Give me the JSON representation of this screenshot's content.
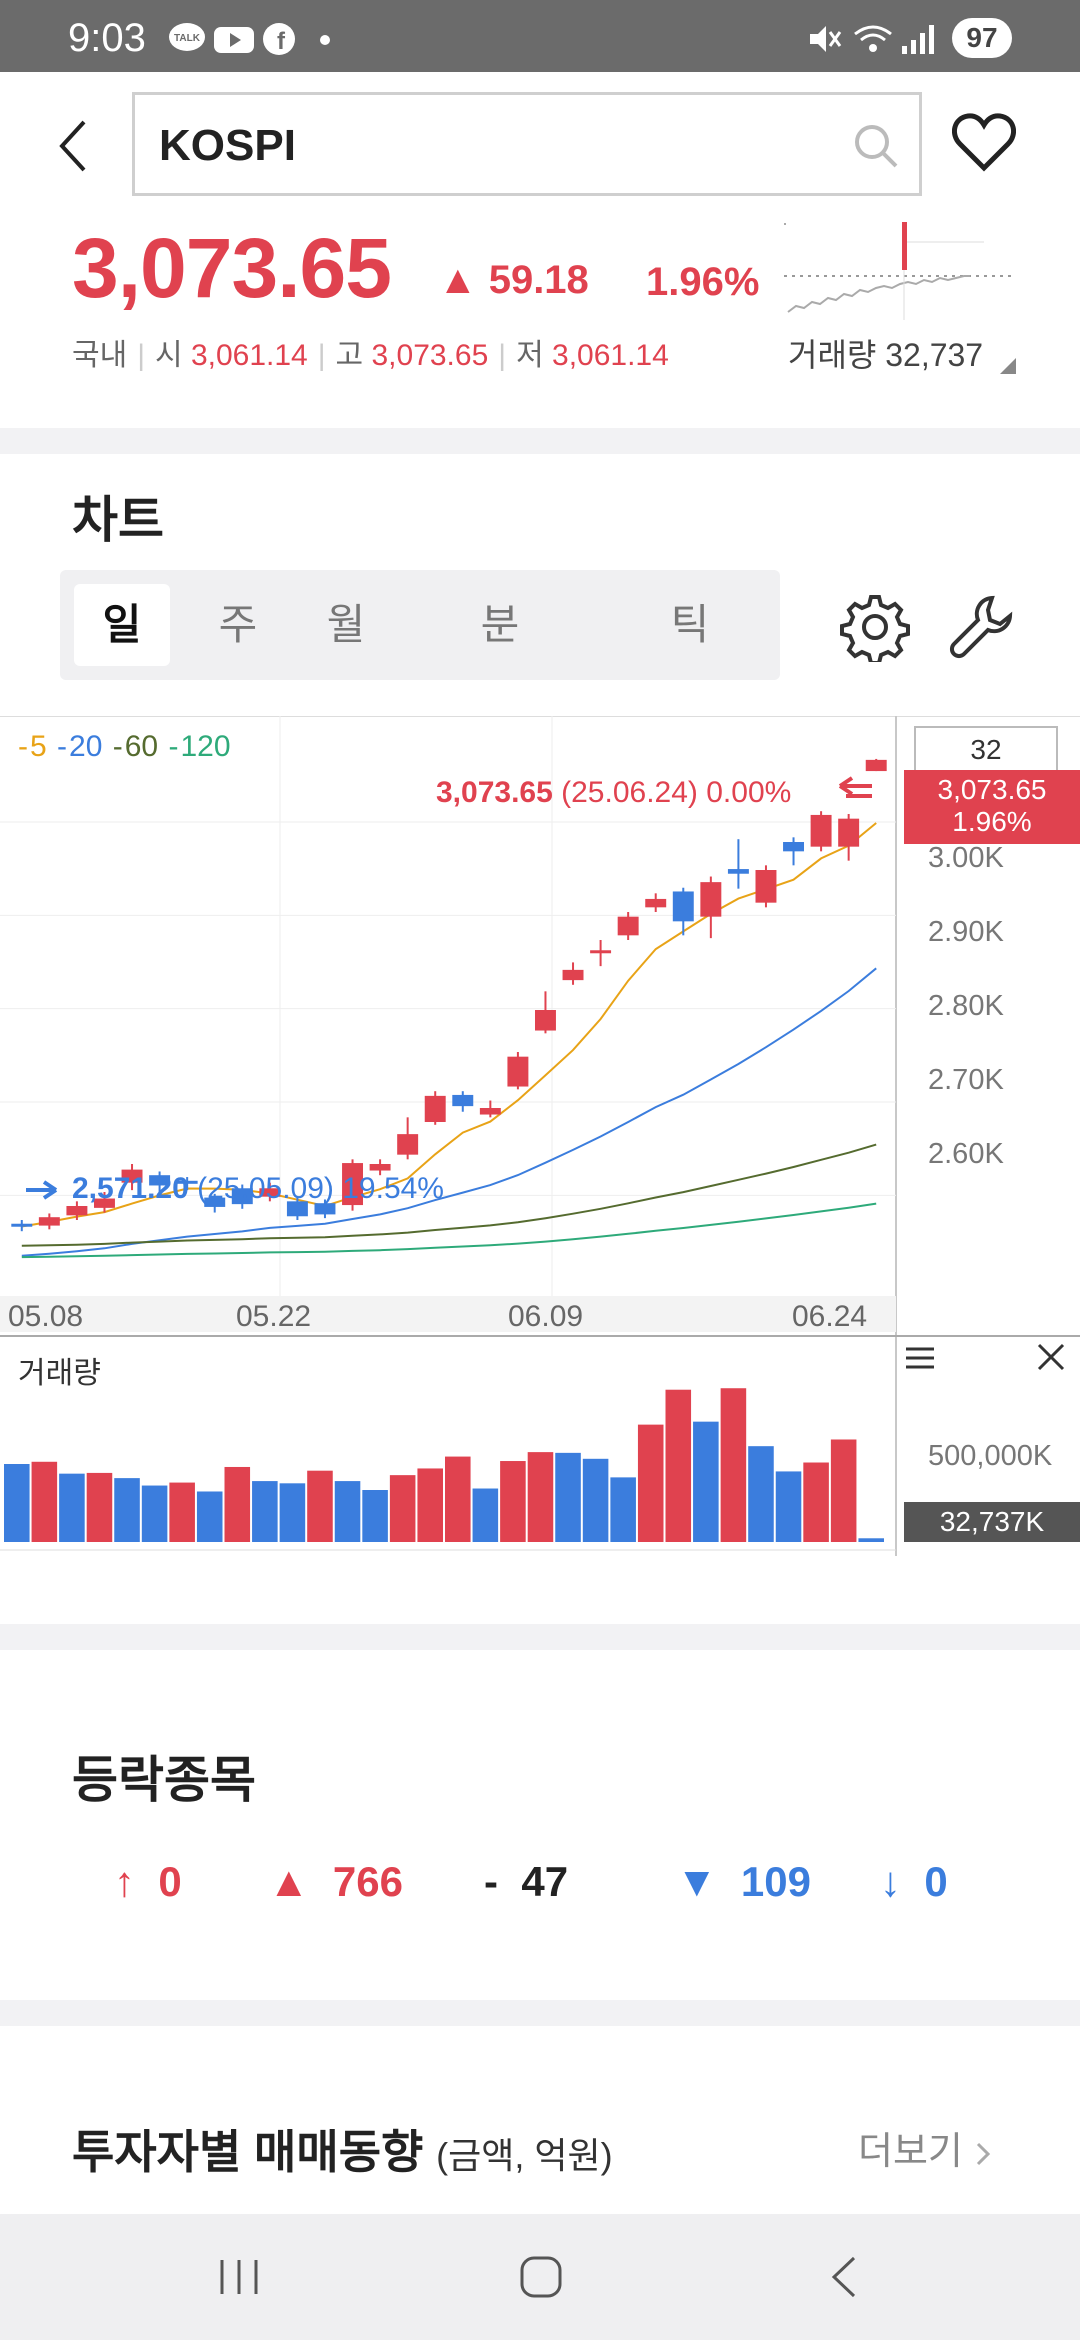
{
  "status_bar": {
    "time": "9:03",
    "battery": "97",
    "icons": [
      "talk-icon",
      "youtube-icon",
      "facebook-icon",
      "dot-icon",
      "mute-icon",
      "wifi-icon",
      "signal-icon"
    ]
  },
  "header": {
    "search_value": "KOSPI",
    "icons": [
      "back-icon",
      "search-icon",
      "heart-icon"
    ]
  },
  "quote": {
    "price": "3,073.65",
    "change": "▲ 59.18",
    "change_pct": "1.96%",
    "market": "국내",
    "open_label": "시",
    "open": "3,061.14",
    "high_label": "고",
    "high": "3,073.65",
    "low_label": "저",
    "low": "3,061.14",
    "volume_label": "거래량",
    "volume": "32,737"
  },
  "chart_section": {
    "title": "차트",
    "tabs": [
      "일",
      "주",
      "월",
      "분",
      "틱"
    ],
    "selected_tab": "일",
    "zoom_value": "32",
    "price_tag_price": "3,073.65",
    "price_tag_pct": "1.96%",
    "last_annotation": {
      "price": "3,073.65",
      "date": "(25.06.24)",
      "pct": "0.00%"
    },
    "low_annotation": {
      "price": "2,571.20",
      "date": "(25.05.09)",
      "pct": "19.54%"
    },
    "ma_legend": [
      {
        "label": "5",
        "color": "#e8a317"
      },
      {
        "label": "20",
        "color": "#3b7ddd"
      },
      {
        "label": "60",
        "color": "#556b2f"
      },
      {
        "label": "120",
        "color": "#2eaa7a"
      }
    ],
    "y_ticks": [
      "3.00K",
      "2.90K",
      "2.80K",
      "2.70K",
      "2.60K"
    ],
    "x_ticks": [
      "05.08",
      "05.22",
      "06.09",
      "06.24"
    ],
    "volume_title": "거래량",
    "volume_tick": "500,000K",
    "volume_tag": "32,737K",
    "colors": {
      "up": "#e0424f",
      "down": "#3b7ddd"
    }
  },
  "chart_data": {
    "type": "candlestick",
    "ylim": [
      2520,
      3120
    ],
    "yticks": [
      3000,
      2900,
      2800,
      2700,
      2600
    ],
    "candles": [
      {
        "o": 2576,
        "c": 2573,
        "h": 2580,
        "l": 2568
      },
      {
        "o": 2574,
        "c": 2583,
        "h": 2587,
        "l": 2570
      },
      {
        "o": 2585,
        "c": 2595,
        "h": 2600,
        "l": 2580
      },
      {
        "o": 2593,
        "c": 2603,
        "h": 2610,
        "l": 2588
      },
      {
        "o": 2620,
        "c": 2634,
        "h": 2640,
        "l": 2612
      },
      {
        "o": 2628,
        "c": 2617,
        "h": 2632,
        "l": 2610
      },
      {
        "o": 2622,
        "c": 2620,
        "h": 2626,
        "l": 2612
      },
      {
        "o": 2604,
        "c": 2594,
        "h": 2608,
        "l": 2588
      },
      {
        "o": 2614,
        "c": 2597,
        "h": 2618,
        "l": 2592
      },
      {
        "o": 2605,
        "c": 2614,
        "h": 2620,
        "l": 2600
      },
      {
        "o": 2600,
        "c": 2584,
        "h": 2604,
        "l": 2580
      },
      {
        "o": 2598,
        "c": 2586,
        "h": 2602,
        "l": 2582
      },
      {
        "o": 2596,
        "c": 2641,
        "h": 2645,
        "l": 2590
      },
      {
        "o": 2633,
        "c": 2640,
        "h": 2645,
        "l": 2628
      },
      {
        "o": 2650,
        "c": 2672,
        "h": 2690,
        "l": 2645
      },
      {
        "o": 2685,
        "c": 2713,
        "h": 2718,
        "l": 2682
      },
      {
        "o": 2714,
        "c": 2702,
        "h": 2718,
        "l": 2696
      },
      {
        "o": 2693,
        "c": 2700,
        "h": 2708,
        "l": 2690
      },
      {
        "o": 2723,
        "c": 2755,
        "h": 2760,
        "l": 2720
      },
      {
        "o": 2783,
        "c": 2805,
        "h": 2825,
        "l": 2780
      },
      {
        "o": 2837,
        "c": 2848,
        "h": 2856,
        "l": 2832
      },
      {
        "o": 2868,
        "c": 2869,
        "h": 2880,
        "l": 2852
      },
      {
        "o": 2885,
        "c": 2905,
        "h": 2910,
        "l": 2880
      },
      {
        "o": 2915,
        "c": 2924,
        "h": 2930,
        "l": 2910
      },
      {
        "o": 2932,
        "c": 2900,
        "h": 2936,
        "l": 2885
      },
      {
        "o": 2905,
        "c": 2942,
        "h": 2948,
        "l": 2882
      },
      {
        "o": 2956,
        "c": 2951,
        "h": 2988,
        "l": 2935
      },
      {
        "o": 2920,
        "c": 2955,
        "h": 2960,
        "l": 2915
      },
      {
        "o": 2985,
        "c": 2975,
        "h": 2990,
        "l": 2960
      },
      {
        "o": 2980,
        "c": 3014,
        "h": 3018,
        "l": 2975
      },
      {
        "o": 2980,
        "c": 3010,
        "h": 3015,
        "l": 2965
      },
      {
        "o": 3061,
        "c": 3073,
        "h": 3074,
        "l": 3061
      }
    ],
    "volumes": [
      {
        "v": 105,
        "up": false
      },
      {
        "v": 108,
        "up": true
      },
      {
        "v": 92,
        "up": false
      },
      {
        "v": 93,
        "up": true
      },
      {
        "v": 86,
        "up": false
      },
      {
        "v": 76,
        "up": false
      },
      {
        "v": 80,
        "up": true
      },
      {
        "v": 68,
        "up": false
      },
      {
        "v": 101,
        "up": true
      },
      {
        "v": 82,
        "up": false
      },
      {
        "v": 79,
        "up": false
      },
      {
        "v": 96,
        "up": true
      },
      {
        "v": 82,
        "up": false
      },
      {
        "v": 70,
        "up": false
      },
      {
        "v": 90,
        "up": true
      },
      {
        "v": 99,
        "up": true
      },
      {
        "v": 115,
        "up": true
      },
      {
        "v": 72,
        "up": false
      },
      {
        "v": 109,
        "up": true
      },
      {
        "v": 121,
        "up": true
      },
      {
        "v": 120,
        "up": false
      },
      {
        "v": 112,
        "up": false
      },
      {
        "v": 87,
        "up": false
      },
      {
        "v": 158,
        "up": true
      },
      {
        "v": 205,
        "up": true
      },
      {
        "v": 162,
        "up": false
      },
      {
        "v": 207,
        "up": true
      },
      {
        "v": 129,
        "up": false
      },
      {
        "v": 95,
        "up": false
      },
      {
        "v": 107,
        "up": true
      },
      {
        "v": 138,
        "up": true
      },
      {
        "v": 5,
        "up": false
      }
    ]
  },
  "breadth": {
    "title": "등락종목",
    "items": [
      {
        "symbol": "↑",
        "value": "0",
        "tone": "up"
      },
      {
        "symbol": "▲",
        "value": "766",
        "tone": "up"
      },
      {
        "symbol": "-",
        "value": "47",
        "tone": "flat"
      },
      {
        "symbol": "▼",
        "value": "109",
        "tone": "down"
      },
      {
        "symbol": "↓",
        "value": "0",
        "tone": "down"
      }
    ]
  },
  "investor": {
    "title": "투자자별 매매동향",
    "unit": "(금액, 억원)",
    "more": "더보기"
  },
  "nav": {
    "icons": [
      "recent-apps-icon",
      "home-icon",
      "back-nav-icon"
    ]
  }
}
